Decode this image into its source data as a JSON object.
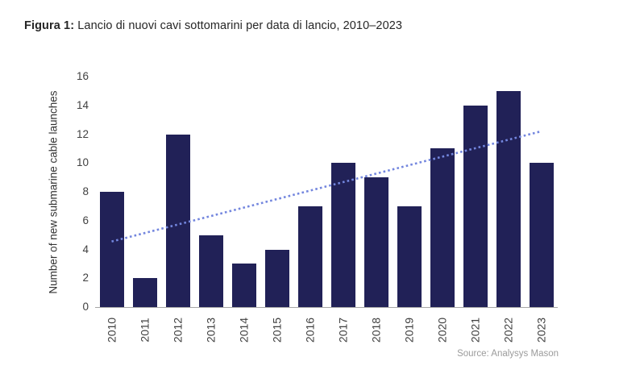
{
  "figure": {
    "title_prefix": "Figura 1:",
    "title_text": " Lancio di nuovi cavi sottomarini per data di lancio, 2010–2023",
    "source": "Source: Analysys Mason"
  },
  "chart_data": {
    "type": "bar",
    "title": "Figura 1: Lancio di nuovi cavi sottomarini per data di lancio, 2010–2023",
    "categories": [
      "2010",
      "2011",
      "2012",
      "2013",
      "2014",
      "2015",
      "2016",
      "2017",
      "2018",
      "2019",
      "2020",
      "2021",
      "2022",
      "2023"
    ],
    "values": [
      8,
      2,
      12,
      5,
      3,
      4,
      7,
      10,
      9,
      7,
      11,
      14,
      15,
      10
    ],
    "xlabel": "",
    "ylabel": "Number of new submarine cable launches",
    "ylim": [
      0,
      16
    ],
    "ytick_step": 2,
    "grid": false,
    "legend": false,
    "bar_color": "#212157",
    "axis_color": "#a6a6a6",
    "trendline": {
      "type": "linear",
      "style": "dotted",
      "color": "#7386de",
      "start_value": 4.55,
      "end_value": 12.2
    },
    "source": "Source: Analysys Mason"
  }
}
